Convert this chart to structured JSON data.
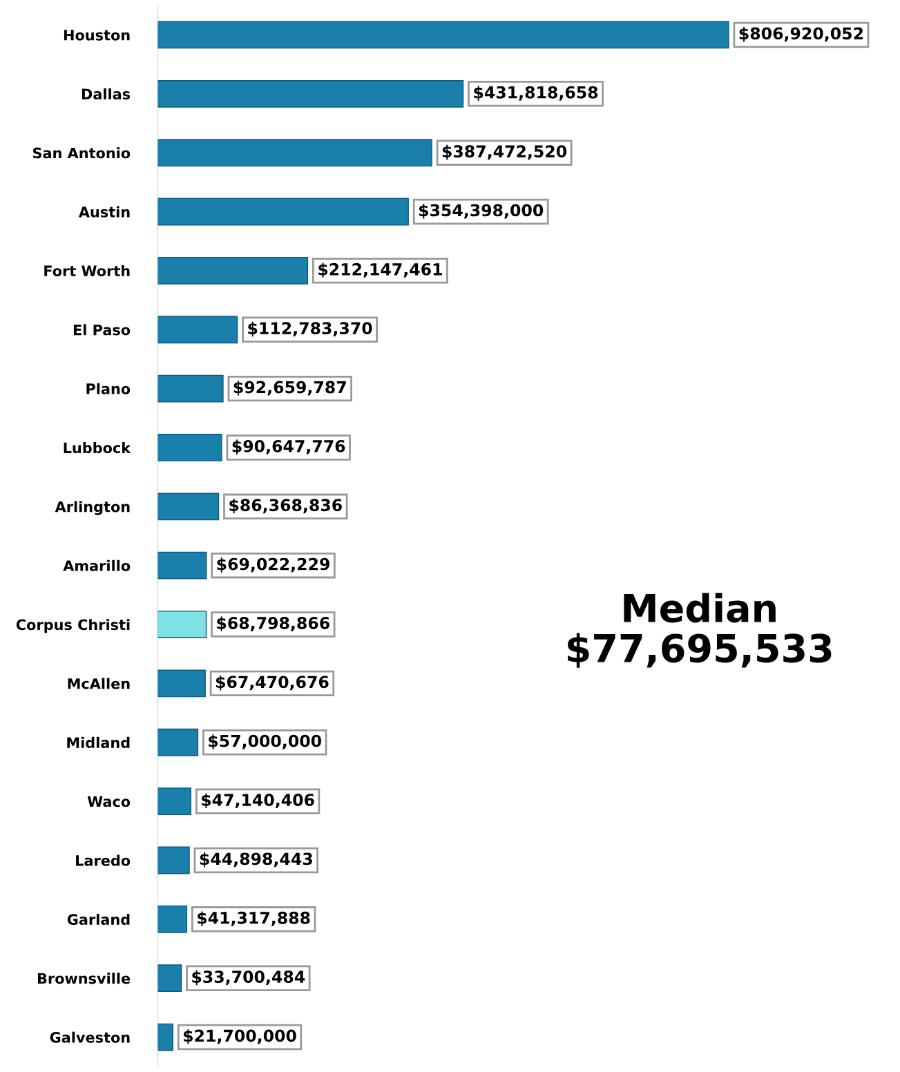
{
  "chart_data": {
    "type": "bar",
    "orientation": "horizontal",
    "categories": [
      "Houston",
      "Dallas",
      "San Antonio",
      "Austin",
      "Fort Worth",
      "El Paso",
      "Plano",
      "Lubbock",
      "Arlington",
      "Amarillo",
      "Corpus Christi",
      "McAllen",
      "Midland",
      "Waco",
      "Laredo",
      "Garland",
      "Brownsville",
      "Galveston"
    ],
    "values": [
      806920052,
      431818658,
      387472520,
      354398000,
      212147461,
      112783370,
      92659787,
      90647776,
      86368836,
      69022229,
      68798866,
      67470676,
      57000000,
      47140406,
      44898443,
      41317888,
      33700484,
      21700000
    ],
    "colors": [
      "#1a7fab",
      "#1a7fab",
      "#1a7fab",
      "#1a7fab",
      "#1a7fab",
      "#1a7fab",
      "#1a7fab",
      "#1a7fab",
      "#1a7fab",
      "#1a7fab",
      "#7fe0e6",
      "#1a7fab",
      "#1a7fab",
      "#1a7fab",
      "#1a7fab",
      "#1a7fab",
      "#1a7fab",
      "#1a7fab"
    ],
    "value_labels": [
      "$806,920,052",
      "$431,818,658",
      "$387,472,520",
      "$354,398,000",
      "$212,147,461",
      "$112,783,370",
      "$92,659,787",
      "$90,647,776",
      "$86,368,836",
      "$69,022,229",
      "$68,798,866",
      "$67,470,676",
      "$57,000,000",
      "$47,140,406",
      "$44,898,443",
      "$41,317,888",
      "$33,700,484",
      "$21,700,000"
    ],
    "tick_labels": "y",
    "grid": false,
    "legend": false,
    "annotations": [
      "Median\n$77,695,533"
    ]
  }
}
